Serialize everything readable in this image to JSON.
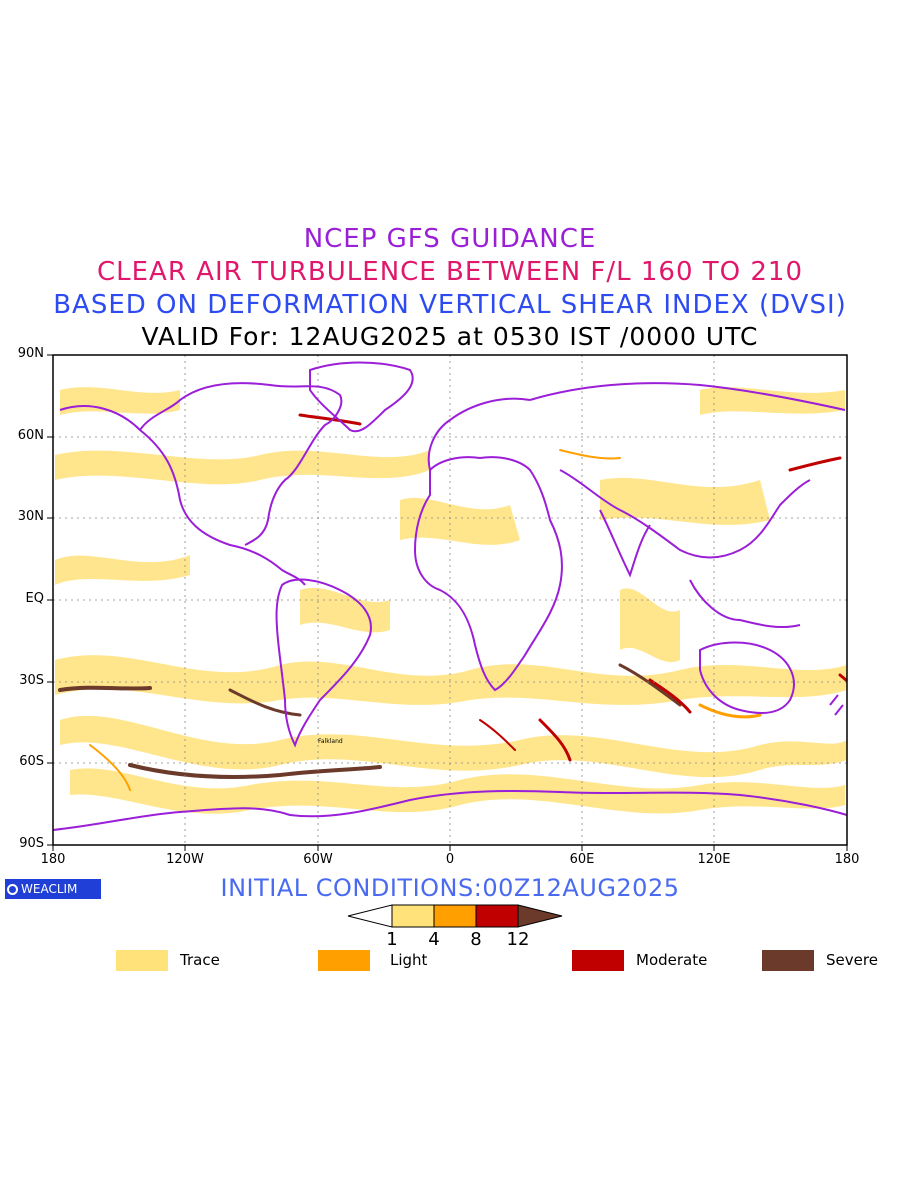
{
  "titles": {
    "line1": "NCEP GFS GUIDANCE",
    "line2": "CLEAR AIR TURBULENCE BETWEEN F/L 160 TO 210",
    "line3": "BASED ON DEFORMATION VERTICAL SHEAR INDEX (DVSI)",
    "line4": "VALID For: 12AUG2025 at 0530 IST /0000 UTC"
  },
  "axes": {
    "lat_labels": [
      "90N",
      "60N",
      "30N",
      "EQ",
      "30S",
      "60S",
      "90S"
    ],
    "lon_labels": [
      "180",
      "120W",
      "60W",
      "0",
      "60E",
      "120E",
      "180"
    ]
  },
  "logo": {
    "text": "WEACLIM"
  },
  "initial_conditions": "INITIAL CONDITIONS:00Z12AUG2025",
  "colorbar": {
    "ticks": [
      "1",
      "4",
      "8",
      "12"
    ],
    "colors": [
      "#ffe27a",
      "#ffa000",
      "#c00000",
      "#6b3a2a"
    ]
  },
  "legend": [
    {
      "label": "Trace",
      "color": "#ffe27a"
    },
    {
      "label": "Light",
      "color": "#ffa000"
    },
    {
      "label": "Moderate",
      "color": "#c00000"
    },
    {
      "label": "Severe",
      "color": "#6b3a2a"
    }
  ],
  "colors": {
    "coastline": "#9b1ed8",
    "grid": "#888888"
  },
  "map_labels": {
    "falkland": "Falkland"
  }
}
